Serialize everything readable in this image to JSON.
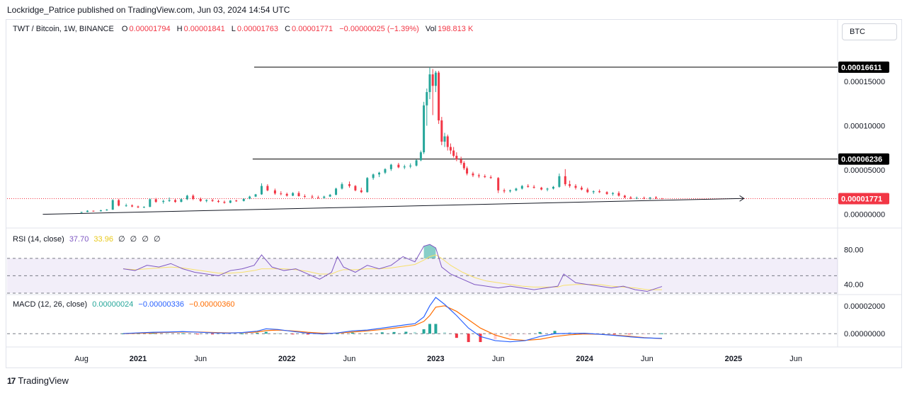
{
  "header": {
    "publisher": "Lockridge_Patrice published on TradingView.com, Jun 03, 2024 14:54 UTC"
  },
  "legend": {
    "symbol": "TWT / Bitcoin, 1W, BINANCE",
    "o_label": "O",
    "o": "0.00001794",
    "h_label": "H",
    "h": "0.00001841",
    "l_label": "L",
    "l": "0.00001763",
    "c_label": "C",
    "c": "0.00001771",
    "change": "−0.00000025 (−1.39%)",
    "vol_label": "Vol",
    "vol": "198.813 K"
  },
  "currency_button": "BTC",
  "rsi": {
    "label": "RSI (14, close)",
    "value": "37.70",
    "ma": "33.96",
    "extra": [
      "∅",
      "∅",
      "∅",
      "∅"
    ]
  },
  "macd": {
    "label": "MACD (12, 26, close)",
    "hist": "0.00000024",
    "macd": "−0.00000336",
    "signal": "−0.00000360"
  },
  "footer": {
    "logo": "17",
    "brand": "TradingView"
  },
  "colors": {
    "up": "#26a69a",
    "down": "#f23645",
    "rsi": "#7e57c2",
    "rsi_ma": "#f7e06b",
    "macd": "#2962ff",
    "signal": "#ff6d00"
  },
  "chart_data": {
    "type": "candlestick",
    "timeframe": "1W",
    "x_ticks": [
      "Aug",
      "2021",
      "Jun",
      "2022",
      "Jun",
      "2023",
      "Jun",
      "2024",
      "Jun",
      "2025",
      "Jun"
    ],
    "price_axis": {
      "ticks": [
        "0.00015000",
        "0.00010000",
        "0.00005000",
        "0.00000000"
      ],
      "tick_values": [
        0.00015,
        0.0001,
        5e-05,
        0
      ],
      "ylim": [
        -2.7e-06,
        0.00019
      ],
      "labels": [
        {
          "text": "0.00016611",
          "value": 0.00016611,
          "color": "#000000"
        },
        {
          "text": "0.00006236",
          "value": 6.236e-05,
          "color": "#000000"
        },
        {
          "text": "0.00001771",
          "value": 1.771e-05,
          "color": "#f23645"
        }
      ]
    },
    "horizontal_lines": [
      0.00016611,
      6.236e-05
    ],
    "trendline": {
      "from": [
        2020.36,
        0.0
      ],
      "to": [
        2025.07,
        1.79e-05
      ]
    },
    "current_price": 1.771e-05,
    "candles": [
      [
        2020.62,
        1.8e-06,
        2.8e-06,
        1.2e-06,
        2.6e-06
      ],
      [
        2020.66,
        2.6e-06,
        4.6e-06,
        2.4e-06,
        4e-06
      ],
      [
        2020.7,
        4e-06,
        4.2e-06,
        3e-06,
        3.4e-06
      ],
      [
        2020.75,
        3.4e-06,
        5e-06,
        3.2e-06,
        4.6e-06
      ],
      [
        2020.79,
        4.6e-06,
        6e-06,
        4e-06,
        5.2e-06
      ],
      [
        2020.83,
        5.2e-06,
        1.7e-05,
        5e-06,
        1.6e-05
      ],
      [
        2020.87,
        1.6e-05,
        1.72e-05,
        9e-06,
        9.8e-06
      ],
      [
        2020.92,
        9.8e-06,
        1.2e-05,
        8.5e-06,
        1e-05
      ],
      [
        2020.96,
        1e-05,
        1.12e-05,
        8e-06,
        8.8e-06
      ],
      [
        2021.0,
        8.8e-06,
        9.8e-06,
        7e-06,
        7.8e-06
      ],
      [
        2021.04,
        7.8e-06,
        9e-06,
        7e-06,
        8.4e-06
      ],
      [
        2021.08,
        8.4e-06,
        1.8e-05,
        8e-06,
        1.7e-05
      ],
      [
        2021.12,
        1.7e-05,
        1.85e-05,
        1.3e-05,
        1.4e-05
      ],
      [
        2021.17,
        1.4e-05,
        1.65e-05,
        1.2e-05,
        1.5e-05
      ],
      [
        2021.21,
        1.5e-05,
        1.9e-05,
        1.4e-05,
        1.6e-05
      ],
      [
        2021.25,
        1.6e-05,
        1.75e-05,
        1.3e-05,
        1.4e-05
      ],
      [
        2021.29,
        1.4e-05,
        1.8e-05,
        1.35e-05,
        1.7e-05
      ],
      [
        2021.33,
        1.7e-05,
        2.2e-05,
        1.6e-05,
        2.1e-05
      ],
      [
        2021.37,
        2.1e-05,
        2.25e-05,
        1.6e-05,
        1.75e-05
      ],
      [
        2021.42,
        1.75e-05,
        1.9e-05,
        1.4e-05,
        1.5e-05
      ],
      [
        2021.46,
        1.5e-05,
        1.7e-05,
        1.35e-05,
        1.6e-05
      ],
      [
        2021.5,
        1.6e-05,
        1.75e-05,
        1.4e-05,
        1.5e-05
      ],
      [
        2021.54,
        1.5e-05,
        1.65e-05,
        1.3e-05,
        1.4e-05
      ],
      [
        2021.58,
        1.4e-05,
        1.55e-05,
        1.2e-05,
        1.3e-05
      ],
      [
        2021.62,
        1.3e-05,
        1.6e-05,
        1.25e-05,
        1.55e-05
      ],
      [
        2021.66,
        1.55e-05,
        1.65e-05,
        1.4e-05,
        1.5e-05
      ],
      [
        2021.71,
        1.5e-05,
        1.8e-05,
        1.45e-05,
        1.75e-05
      ],
      [
        2021.75,
        1.75e-05,
        2.1e-05,
        1.7e-05,
        2e-05
      ],
      [
        2021.79,
        2e-05,
        2.3e-05,
        1.95e-05,
        2.25e-05
      ],
      [
        2021.83,
        2.25e-05,
        3.5e-05,
        2.2e-05,
        3.2e-05
      ],
      [
        2021.87,
        3.2e-05,
        3.4e-05,
        2.6e-05,
        2.7e-05
      ],
      [
        2021.92,
        2.7e-05,
        2.9e-05,
        2.2e-05,
        2.35e-05
      ],
      [
        2021.96,
        2.35e-05,
        2.6e-05,
        2.15e-05,
        2.3e-05
      ],
      [
        2022.0,
        2.3e-05,
        2.45e-05,
        2e-05,
        2.1e-05
      ],
      [
        2022.04,
        2.1e-05,
        2.5e-05,
        2.05e-05,
        2.4e-05
      ],
      [
        2022.08,
        2.4e-05,
        2.6e-05,
        2e-05,
        2.05e-05
      ],
      [
        2022.12,
        2.05e-05,
        2.25e-05,
        1.85e-05,
        2e-05
      ],
      [
        2022.17,
        2e-05,
        2.2e-05,
        1.8e-05,
        1.9e-05
      ],
      [
        2022.21,
        1.9e-05,
        2.1e-05,
        1.75e-05,
        1.85e-05
      ],
      [
        2022.25,
        1.85e-05,
        2.1e-05,
        1.75e-05,
        2e-05
      ],
      [
        2022.29,
        2e-05,
        2.3e-05,
        1.95e-05,
        2.2e-05
      ],
      [
        2022.33,
        2.2e-05,
        3e-05,
        2.15e-05,
        2.9e-05
      ],
      [
        2022.37,
        2.9e-05,
        3.6e-05,
        2.8e-05,
        3.4e-05
      ],
      [
        2022.42,
        3.4e-05,
        3.7e-05,
        3e-05,
        3.2e-05
      ],
      [
        2022.46,
        3.2e-05,
        3.3e-05,
        2.6e-05,
        2.7e-05
      ],
      [
        2022.5,
        2.7e-05,
        3e-05,
        2.4e-05,
        2.5e-05
      ],
      [
        2022.54,
        2.5e-05,
        4.2e-05,
        2.45e-05,
        4.1e-05
      ],
      [
        2022.58,
        4.1e-05,
        4.6e-05,
        3.9e-05,
        4.5e-05
      ],
      [
        2022.62,
        4.5e-05,
        4.8e-05,
        4.2e-05,
        4.7e-05
      ],
      [
        2022.66,
        4.7e-05,
        5.2e-05,
        4.55e-05,
        5.1e-05
      ],
      [
        2022.7,
        5.1e-05,
        5.7e-05,
        4.9e-05,
        5.6e-05
      ],
      [
        2022.75,
        5.6e-05,
        5.8e-05,
        5.2e-05,
        5.3e-05
      ],
      [
        2022.79,
        5.3e-05,
        5.6e-05,
        5.1e-05,
        5.4e-05
      ],
      [
        2022.83,
        5.4e-05,
        5.75e-05,
        5.2e-05,
        5.5e-05
      ],
      [
        2022.87,
        5.5e-05,
        6.2e-05,
        5.4e-05,
        6.1e-05
      ],
      [
        2022.9,
        6.1e-05,
        7.2e-05,
        6e-05,
        7e-05
      ],
      [
        2022.92,
        7e-05,
        0.000127,
        6.8e-05,
        0.000123
      ],
      [
        2022.94,
        0.000123,
        0.000142,
        0.0001,
        0.000138
      ],
      [
        2022.96,
        0.000138,
        0.0001661,
        0.00013,
        0.000158
      ],
      [
        2022.98,
        0.000158,
        0.000164,
        0.000112,
        0.000145
      ],
      [
        2023.0,
        0.000145,
        0.000162,
        0.000138,
        0.00016
      ],
      [
        2023.02,
        0.00016,
        0.000162,
        0.000102,
        0.000106
      ],
      [
        2023.04,
        0.000106,
        0.00011,
        7.8e-05,
        8.2e-05
      ],
      [
        2023.06,
        8.2e-05,
        9.2e-05,
        7.6e-05,
        8.8e-05
      ],
      [
        2023.08,
        8.8e-05,
        9e-05,
        7.2e-05,
        7.6e-05
      ],
      [
        2023.1,
        7.6e-05,
        8e-05,
        6.8e-05,
        7.2e-05
      ],
      [
        2023.12,
        7.2e-05,
        7.6e-05,
        6.4e-05,
        6.6e-05
      ],
      [
        2023.14,
        6.6e-05,
        7e-05,
        6e-05,
        6.2e-05
      ],
      [
        2023.17,
        6.2e-05,
        6.5e-05,
        5.6e-05,
        5.8e-05
      ],
      [
        2023.19,
        5.8e-05,
        6e-05,
        5e-05,
        5.2e-05
      ],
      [
        2023.21,
        5.2e-05,
        5.4e-05,
        4.4e-05,
        4.6e-05
      ],
      [
        2023.25,
        4.6e-05,
        4.8e-05,
        4.2e-05,
        4.4e-05
      ],
      [
        2023.29,
        4.4e-05,
        4.6e-05,
        4.1e-05,
        4.3e-05
      ],
      [
        2023.33,
        4.3e-05,
        4.5e-05,
        4.1e-05,
        4.2e-05
      ],
      [
        2023.37,
        4.2e-05,
        4.4e-05,
        4e-05,
        4.1e-05
      ],
      [
        2023.42,
        4.1e-05,
        4.2e-05,
        2.4e-05,
        2.7e-05
      ],
      [
        2023.46,
        2.7e-05,
        2.9e-05,
        2.4e-05,
        2.6e-05
      ],
      [
        2023.5,
        2.6e-05,
        2.8e-05,
        2.45e-05,
        2.7e-05
      ],
      [
        2023.54,
        2.7e-05,
        3e-05,
        2.6e-05,
        2.9e-05
      ],
      [
        2023.58,
        2.9e-05,
        3.3e-05,
        2.8e-05,
        3.2e-05
      ],
      [
        2023.62,
        3.2e-05,
        3.4e-05,
        3e-05,
        3.1e-05
      ],
      [
        2023.66,
        3.1e-05,
        3.3e-05,
        2.9e-05,
        3e-05
      ],
      [
        2023.71,
        3e-05,
        3.1e-05,
        2.7e-05,
        2.8e-05
      ],
      [
        2023.75,
        2.8e-05,
        3e-05,
        2.6e-05,
        2.9e-05
      ],
      [
        2023.79,
        2.9e-05,
        3.2e-05,
        2.8e-05,
        3.1e-05
      ],
      [
        2023.83,
        3.1e-05,
        4.6e-05,
        3e-05,
        4.3e-05
      ],
      [
        2023.87,
        4.3e-05,
        5.1e-05,
        3.2e-05,
        3.4e-05
      ],
      [
        2023.9,
        3.4e-05,
        3.8e-05,
        3e-05,
        3.2e-05
      ],
      [
        2023.94,
        3.2e-05,
        3.4e-05,
        2.8e-05,
        3e-05
      ],
      [
        2023.98,
        3e-05,
        3.2e-05,
        2.7e-05,
        2.8e-05
      ],
      [
        2024.02,
        2.8e-05,
        3e-05,
        2.4e-05,
        2.5e-05
      ],
      [
        2024.06,
        2.5e-05,
        2.7e-05,
        2.3e-05,
        2.6e-05
      ],
      [
        2024.1,
        2.6e-05,
        2.8e-05,
        2.4e-05,
        2.5e-05
      ],
      [
        2024.15,
        2.5e-05,
        2.6e-05,
        2.2e-05,
        2.3e-05
      ],
      [
        2024.19,
        2.3e-05,
        2.5e-05,
        2.1e-05,
        2.4e-05
      ],
      [
        2024.23,
        2.4e-05,
        2.6e-05,
        2e-05,
        2.1e-05
      ],
      [
        2024.27,
        2.1e-05,
        2.2e-05,
        1.8e-05,
        1.9e-05
      ],
      [
        2024.31,
        1.9e-05,
        2.05e-05,
        1.7e-05,
        1.8e-05
      ],
      [
        2024.35,
        1.8e-05,
        2e-05,
        1.7e-05,
        1.85e-05
      ],
      [
        2024.4,
        1.85e-05,
        2e-05,
        1.7e-05,
        1.78e-05
      ],
      [
        2024.44,
        1.78e-05,
        1.95e-05,
        1.65e-05,
        1.9e-05
      ],
      [
        2024.48,
        1.9e-05,
        2.05e-05,
        1.75e-05,
        1.79e-05
      ],
      [
        2024.52,
        1.794e-05,
        1.841e-05,
        1.763e-05,
        1.771e-05
      ]
    ],
    "rsi": {
      "ticks": [
        "80.00",
        "40.00"
      ],
      "tick_values": [
        80,
        40
      ],
      "ylim": [
        30,
        100
      ],
      "levels": [
        70,
        50,
        30
      ],
      "x": [
        2020.9,
        2020.98,
        2021.06,
        2021.14,
        2021.22,
        2021.3,
        2021.38,
        2021.46,
        2021.54,
        2021.62,
        2021.7,
        2021.78,
        2021.83,
        2021.9,
        2021.98,
        2022.06,
        2022.14,
        2022.22,
        2022.3,
        2022.34,
        2022.38,
        2022.46,
        2022.54,
        2022.62,
        2022.7,
        2022.78,
        2022.86,
        2022.92,
        2022.96,
        2023.0,
        2023.04,
        2023.1,
        2023.18,
        2023.26,
        2023.34,
        2023.42,
        2023.5,
        2023.58,
        2023.66,
        2023.74,
        2023.82,
        2023.86,
        2023.94,
        2024.02,
        2024.1,
        2024.18,
        2024.26,
        2024.34,
        2024.42,
        2024.52
      ],
      "values": [
        58,
        56,
        62,
        60,
        64,
        58,
        54,
        52,
        50,
        56,
        58,
        62,
        74,
        60,
        56,
        58,
        52,
        46,
        54,
        72,
        60,
        54,
        62,
        58,
        62,
        72,
        66,
        84,
        86,
        82,
        60,
        52,
        46,
        40,
        38,
        36,
        38,
        36,
        34,
        36,
        38,
        52,
        42,
        40,
        38,
        36,
        38,
        34,
        32,
        37.7
      ],
      "ma": [
        58,
        57,
        58,
        59,
        60,
        59,
        57,
        55,
        53,
        53,
        54,
        56,
        58,
        58,
        58,
        57,
        55,
        52,
        52,
        55,
        57,
        57,
        58,
        58,
        59,
        61,
        63,
        68,
        72,
        74,
        70,
        62,
        54,
        48,
        44,
        42,
        40,
        38,
        37,
        37,
        37,
        39,
        40,
        40,
        40,
        38,
        37,
        36,
        34,
        33.96
      ]
    },
    "macd": {
      "ticks": [
        "0.00002000",
        "0.00000000"
      ],
      "tick_values": [
        2e-05,
        0
      ],
      "ylim": [
        -8e-06,
        2.6e-05
      ],
      "x": [
        2020.9,
        2021.0,
        2021.1,
        2021.2,
        2021.3,
        2021.4,
        2021.5,
        2021.6,
        2021.7,
        2021.8,
        2021.86,
        2021.94,
        2022.04,
        2022.14,
        2022.24,
        2022.34,
        2022.44,
        2022.54,
        2022.64,
        2022.72,
        2022.8,
        2022.86,
        2022.92,
        2022.96,
        2023.0,
        2023.06,
        2023.14,
        2023.22,
        2023.3,
        2023.4,
        2023.5,
        2023.6,
        2023.7,
        2023.8,
        2023.9,
        2024.0,
        2024.1,
        2024.2,
        2024.3,
        2024.4,
        2024.52
      ],
      "macd_line": [
        1e-07,
        6e-07,
        1e-06,
        1.2e-06,
        1.5e-06,
        1.1e-06,
        6e-07,
        4e-07,
        8e-07,
        1.8e-06,
        3.5e-06,
        3e-06,
        1.6e-06,
        4e-07,
        -2e-07,
        6e-07,
        2e-06,
        2.6e-06,
        4e-06,
        5.2e-06,
        6.4e-06,
        7.2e-06,
        1.2e-05,
        2e-05,
        2.6e-05,
        2.1e-05,
        1.3e-05,
        4e-06,
        -2e-06,
        -5e-06,
        -5.8e-06,
        -5e-06,
        -2e-06,
        0.0,
        2e-07,
        3e-07,
        -4e-07,
        -1.2e-06,
        -2.2e-06,
        -3e-06,
        -3.36e-06
      ],
      "signal_line": [
        0.0,
        3e-07,
        6e-07,
        9e-07,
        1.2e-06,
        1.2e-06,
        9e-07,
        6e-07,
        7e-07,
        1.2e-06,
        2.2e-06,
        2.6e-06,
        2e-06,
        1e-06,
        3e-07,
        4e-07,
        1.2e-06,
        2e-06,
        3e-06,
        4e-06,
        5e-06,
        6e-06,
        8.8e-06,
        1.3e-05,
        1.9e-05,
        2e-05,
        1.6e-05,
        1e-05,
        4e-06,
        -1e-06,
        -4e-06,
        -4.8e-06,
        -4e-06,
        -2e-06,
        -8e-07,
        -2e-07,
        -4e-07,
        -1e-06,
        -1.8e-06,
        -2.8e-06,
        -3.6e-06
      ],
      "histogram": [
        1e-07,
        3e-07,
        4e-07,
        3e-07,
        3e-07,
        -1e-07,
        -3e-07,
        -2e-07,
        1e-07,
        6e-07,
        1.3e-06,
        4e-07,
        -4e-07,
        -6e-07,
        -5e-07,
        2e-07,
        8e-07,
        6e-07,
        1e-06,
        1.2e-06,
        1.4e-06,
        1.2e-06,
        3.2e-06,
        7e-06,
        7e-06,
        1e-06,
        -3e-06,
        -6e-06,
        -6e-06,
        -4e-06,
        -1.8e-06,
        -2e-07,
        1.2e-06,
        2e-06,
        1e-06,
        5e-07,
        0.0,
        -2e-07,
        -4e-07,
        -2e-07,
        2.4e-07
      ]
    }
  }
}
